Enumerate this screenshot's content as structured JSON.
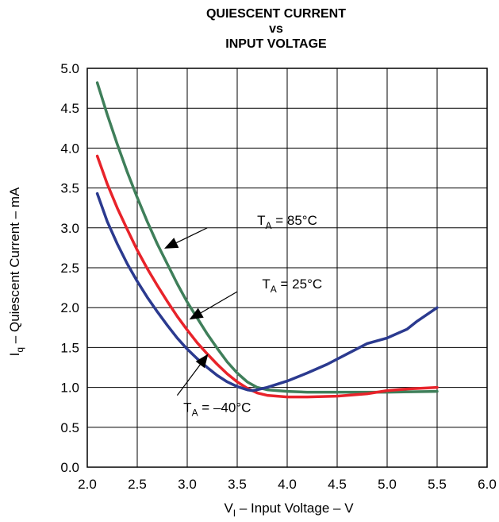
{
  "chart_data": {
    "type": "line",
    "title_lines": [
      "QUIESCENT CURRENT",
      "vs",
      "INPUT VOLTAGE"
    ],
    "xlabel": {
      "main": "V",
      "sub": "I",
      "rest": " – Input Voltage – V"
    },
    "ylabel": {
      "main": "I",
      "sub": "q",
      "rest": " – Quiescent Current – mA"
    },
    "xlim": [
      2.0,
      6.0
    ],
    "ylim": [
      0.0,
      5.0
    ],
    "xticks": [
      "2.0",
      "2.5",
      "3.0",
      "3.5",
      "4.0",
      "4.5",
      "5.0",
      "5.5",
      "6.0"
    ],
    "yticks": [
      "0.0",
      "0.5",
      "1.0",
      "1.5",
      "2.0",
      "2.5",
      "3.0",
      "3.5",
      "4.0",
      "4.5",
      "5.0"
    ],
    "grid": true,
    "series": [
      {
        "name": "TA = 85°C",
        "color": "#3f7f5a",
        "x": [
          2.1,
          2.2,
          2.3,
          2.4,
          2.5,
          2.6,
          2.7,
          2.8,
          2.9,
          3.0,
          3.1,
          3.2,
          3.3,
          3.4,
          3.5,
          3.6,
          3.7,
          3.8,
          4.0,
          4.2,
          4.5,
          5.0,
          5.5
        ],
        "y": [
          4.82,
          4.42,
          4.05,
          3.7,
          3.38,
          3.08,
          2.8,
          2.55,
          2.3,
          2.07,
          1.87,
          1.67,
          1.49,
          1.32,
          1.18,
          1.07,
          1.0,
          0.97,
          0.95,
          0.94,
          0.94,
          0.94,
          0.95
        ]
      },
      {
        "name": "TA = 25°C",
        "color": "#e8232a",
        "x": [
          2.1,
          2.2,
          2.3,
          2.4,
          2.5,
          2.6,
          2.7,
          2.8,
          2.9,
          3.0,
          3.1,
          3.2,
          3.3,
          3.4,
          3.5,
          3.6,
          3.7,
          3.8,
          3.9,
          4.0,
          4.2,
          4.5,
          4.8,
          5.0,
          5.2,
          5.5
        ],
        "y": [
          3.9,
          3.55,
          3.25,
          2.98,
          2.72,
          2.49,
          2.28,
          2.08,
          1.89,
          1.72,
          1.56,
          1.42,
          1.29,
          1.17,
          1.07,
          0.99,
          0.93,
          0.9,
          0.89,
          0.88,
          0.88,
          0.89,
          0.92,
          0.96,
          0.98,
          1.0
        ]
      },
      {
        "name": "TA = –40°C",
        "color": "#2b3a8f",
        "x": [
          2.1,
          2.2,
          2.3,
          2.4,
          2.5,
          2.6,
          2.7,
          2.8,
          2.9,
          3.0,
          3.1,
          3.2,
          3.3,
          3.4,
          3.5,
          3.6,
          3.65,
          3.7,
          3.8,
          3.9,
          4.0,
          4.2,
          4.4,
          4.6,
          4.8,
          5.0,
          5.2,
          5.3,
          5.5
        ],
        "y": [
          3.43,
          3.08,
          2.8,
          2.55,
          2.33,
          2.13,
          1.95,
          1.78,
          1.62,
          1.48,
          1.36,
          1.25,
          1.15,
          1.07,
          1.01,
          0.97,
          0.96,
          0.97,
          1.0,
          1.04,
          1.08,
          1.18,
          1.29,
          1.42,
          1.55,
          1.62,
          1.73,
          1.83,
          2.0
        ]
      }
    ],
    "annotations": [
      {
        "main": "T",
        "sub": "A",
        "rest": " = 85°C",
        "text_x": 4.0,
        "text_y": 3.1,
        "arrow_from": [
          3.2,
          3.0
        ],
        "arrow_to": [
          2.77,
          2.74
        ]
      },
      {
        "main": "T",
        "sub": "A",
        "rest": " = 25°C",
        "text_x": 4.05,
        "text_y": 2.3,
        "arrow_from": [
          3.5,
          2.2
        ],
        "arrow_to": [
          3.02,
          1.85
        ]
      },
      {
        "main": "T",
        "sub": "A",
        "rest": " = –40°C",
        "text_x": 3.3,
        "text_y": 0.75,
        "arrow_from": [
          2.9,
          0.9
        ],
        "arrow_to": [
          3.21,
          1.42
        ]
      }
    ]
  }
}
